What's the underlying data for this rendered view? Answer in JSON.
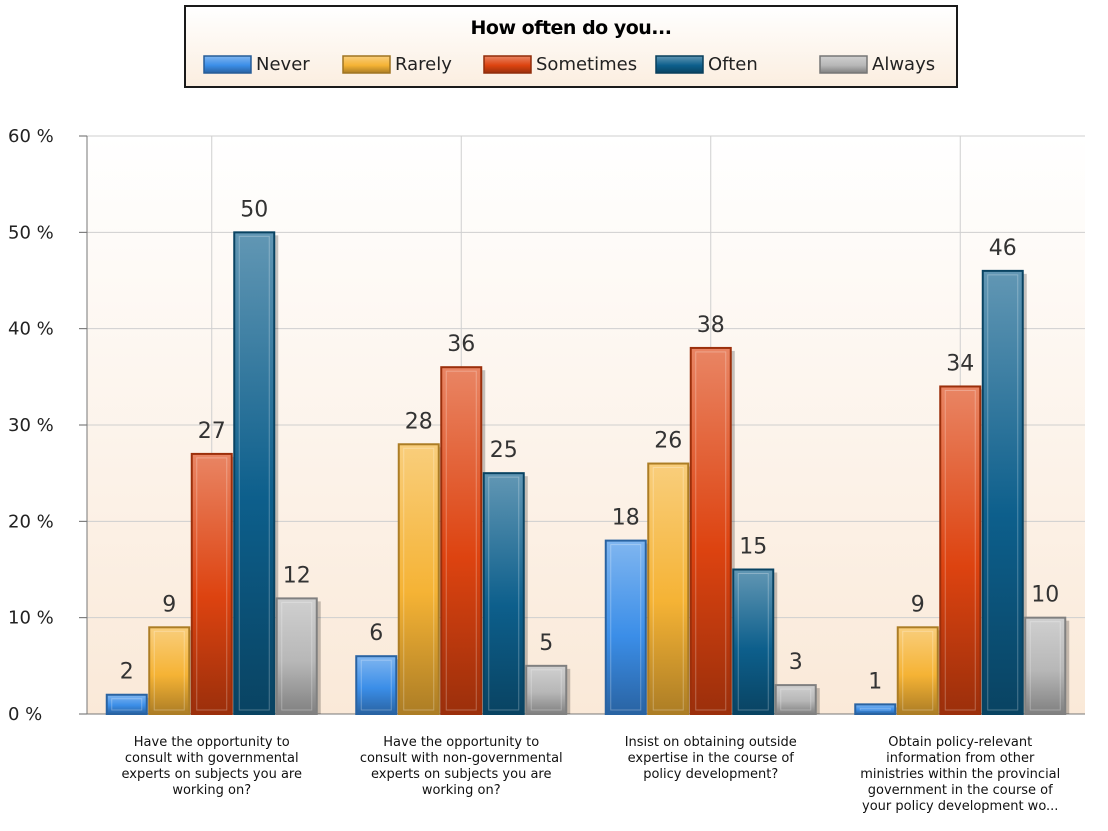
{
  "chart_data": {
    "type": "bar",
    "legend_title": "How often do you...",
    "legend_position": "top",
    "categories": [
      [
        "Have the opportunity to",
        "consult with governmental",
        "experts on subjects you are",
        "working on?"
      ],
      [
        "Have the opportunity to",
        "consult with non-governmental",
        "experts on subjects you are",
        "working on?"
      ],
      [
        "Insist on obtaining outside",
        "expertise in the course of",
        "policy development?"
      ],
      [
        "Obtain policy-relevant",
        "information from other",
        "ministries within the provincial",
        "government in the course of",
        "your policy  development wo..."
      ]
    ],
    "series": [
      {
        "name": "Never",
        "color": "#3b8ee8",
        "values": [
          2,
          6,
          18,
          1
        ]
      },
      {
        "name": "Rarely",
        "color": "#f5b335",
        "values": [
          9,
          28,
          26,
          9
        ]
      },
      {
        "name": "Sometimes",
        "color": "#dd4310",
        "values": [
          27,
          36,
          38,
          34
        ]
      },
      {
        "name": "Often",
        "color": "#0d5f8c",
        "values": [
          50,
          25,
          15,
          46
        ]
      },
      {
        "name": "Always",
        "color": "#b7b7b7",
        "values": [
          12,
          5,
          3,
          10
        ]
      }
    ],
    "ylim": [
      0,
      60
    ],
    "yticks": [
      0,
      10,
      20,
      30,
      40,
      50,
      60
    ],
    "ytick_suffix": " %",
    "grid": true
  }
}
